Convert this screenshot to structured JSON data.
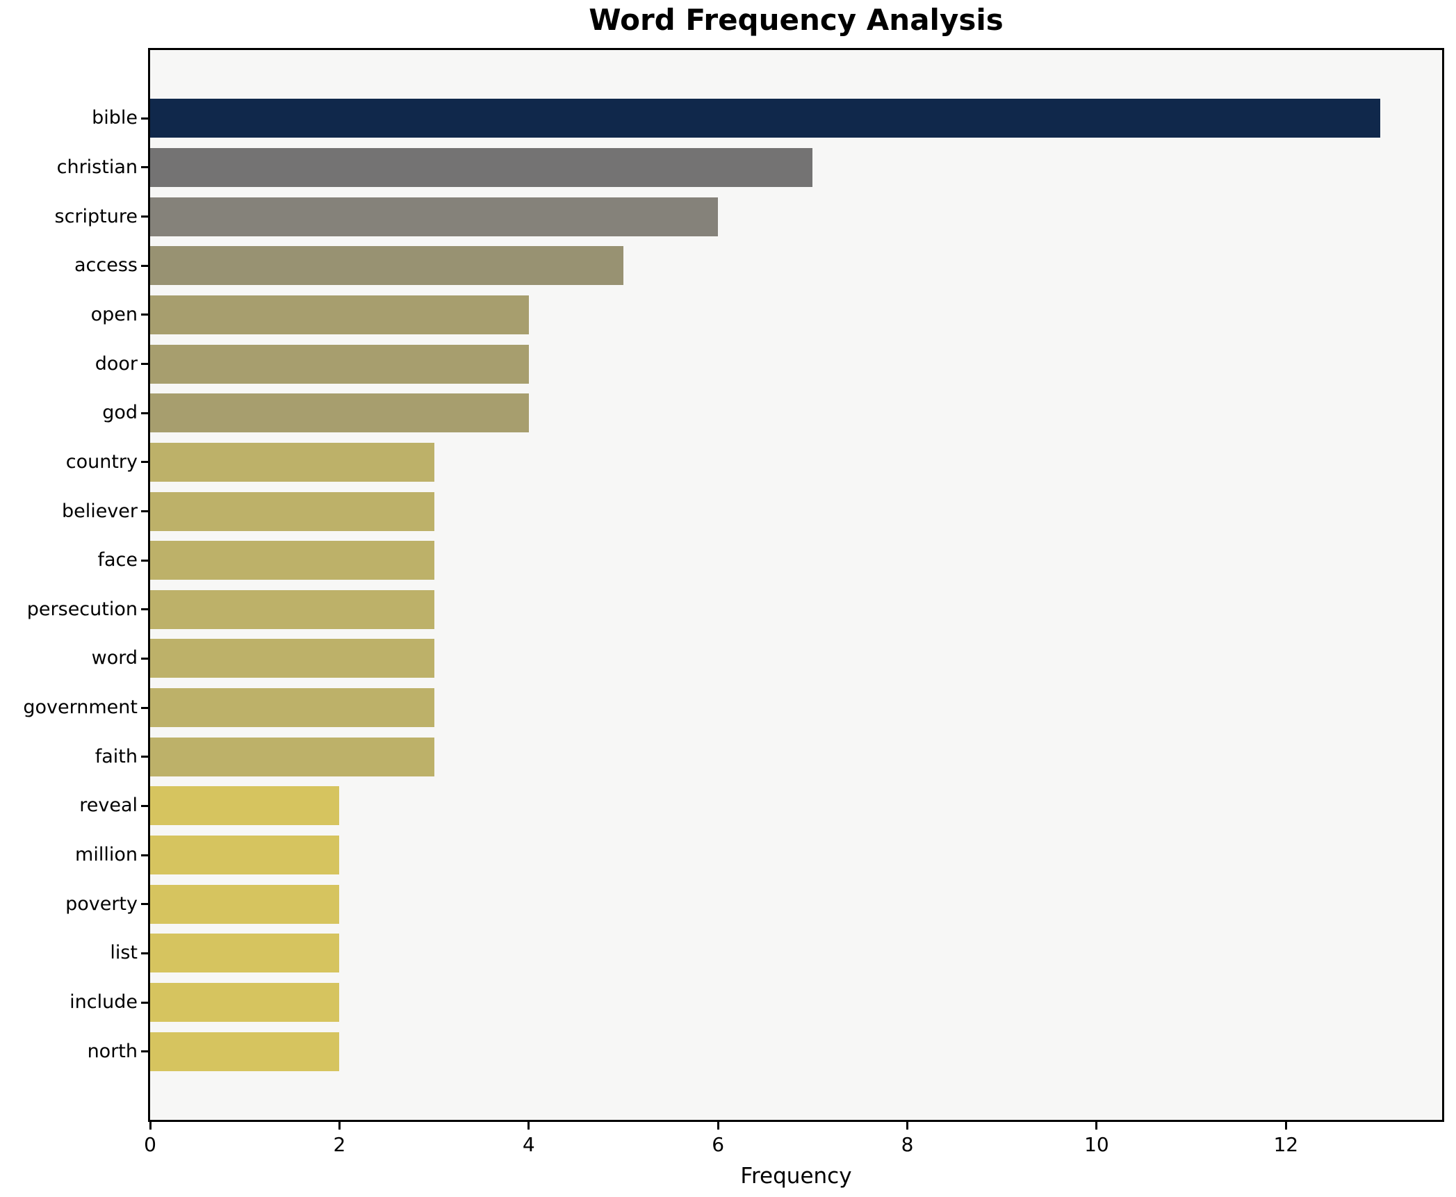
{
  "title": "Word Frequency Analysis",
  "xlabel": "Frequency",
  "chart_data": {
    "type": "bar",
    "orientation": "horizontal",
    "title": "Word Frequency Analysis",
    "xlabel": "Frequency",
    "ylabel": "",
    "categories": [
      "bible",
      "christian",
      "scripture",
      "access",
      "open",
      "door",
      "god",
      "country",
      "believer",
      "face",
      "persecution",
      "word",
      "government",
      "faith",
      "reveal",
      "million",
      "poverty",
      "list",
      "include",
      "north"
    ],
    "values": [
      13,
      7,
      6,
      5,
      4,
      4,
      4,
      3,
      3,
      3,
      3,
      3,
      3,
      3,
      2,
      2,
      2,
      2,
      2,
      2
    ],
    "bar_colors": [
      "#10284b",
      "#747373",
      "#85827a",
      "#989272",
      "#a79e6e",
      "#a79e6e",
      "#a79e6e",
      "#bdb169",
      "#bdb169",
      "#bdb169",
      "#bdb169",
      "#bdb169",
      "#bdb169",
      "#bdb169",
      "#d6c45f",
      "#d6c45f",
      "#d6c45f",
      "#d6c45f",
      "#d6c45f",
      "#d6c45f"
    ],
    "xlim": [
      0,
      13.65
    ],
    "xticks": [
      0,
      2,
      4,
      6,
      8,
      10,
      12
    ],
    "xtick_labels": [
      "0",
      "2",
      "4",
      "6",
      "8",
      "10",
      "12"
    ],
    "grid": false,
    "legend": null,
    "plot_background": "#f7f7f6",
    "figure_background": "#ffffff",
    "spine_color": "#000000",
    "text_color": "#000000"
  }
}
